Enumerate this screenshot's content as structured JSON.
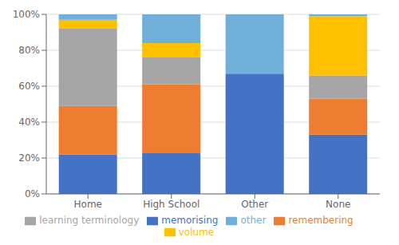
{
  "chart_data": {
    "type": "bar",
    "stacked": true,
    "categories": [
      "Home",
      "High School",
      "Other",
      "None"
    ],
    "series": [
      {
        "name": "memorising",
        "color": "#4472C4",
        "values": [
          0.22,
          0.23,
          0.67,
          0.33
        ]
      },
      {
        "name": "remembering",
        "color": "#ED7D31",
        "values": [
          0.27,
          0.38,
          0.0,
          0.2
        ]
      },
      {
        "name": "learning terminology",
        "color": "#A5A5A5",
        "values": [
          0.43,
          0.15,
          0.0,
          0.13
        ]
      },
      {
        "name": "volume",
        "color": "#FFC000",
        "values": [
          0.05,
          0.08,
          0.0,
          0.33
        ]
      },
      {
        "name": "other",
        "color": "#70B0D8",
        "values": [
          0.03,
          0.16,
          0.33,
          0.01
        ]
      }
    ],
    "ylim": [
      0,
      1.0
    ],
    "yticks": [
      {
        "value": 0.0,
        "label": "0%"
      },
      {
        "value": 0.2,
        "label": "20%"
      },
      {
        "value": 0.4,
        "label": "40%"
      },
      {
        "value": 0.6,
        "label": "60%"
      },
      {
        "value": 0.8,
        "label": "80%"
      },
      {
        "value": 1.0,
        "label": "100%"
      }
    ],
    "grid": true,
    "legend": "bottom"
  }
}
